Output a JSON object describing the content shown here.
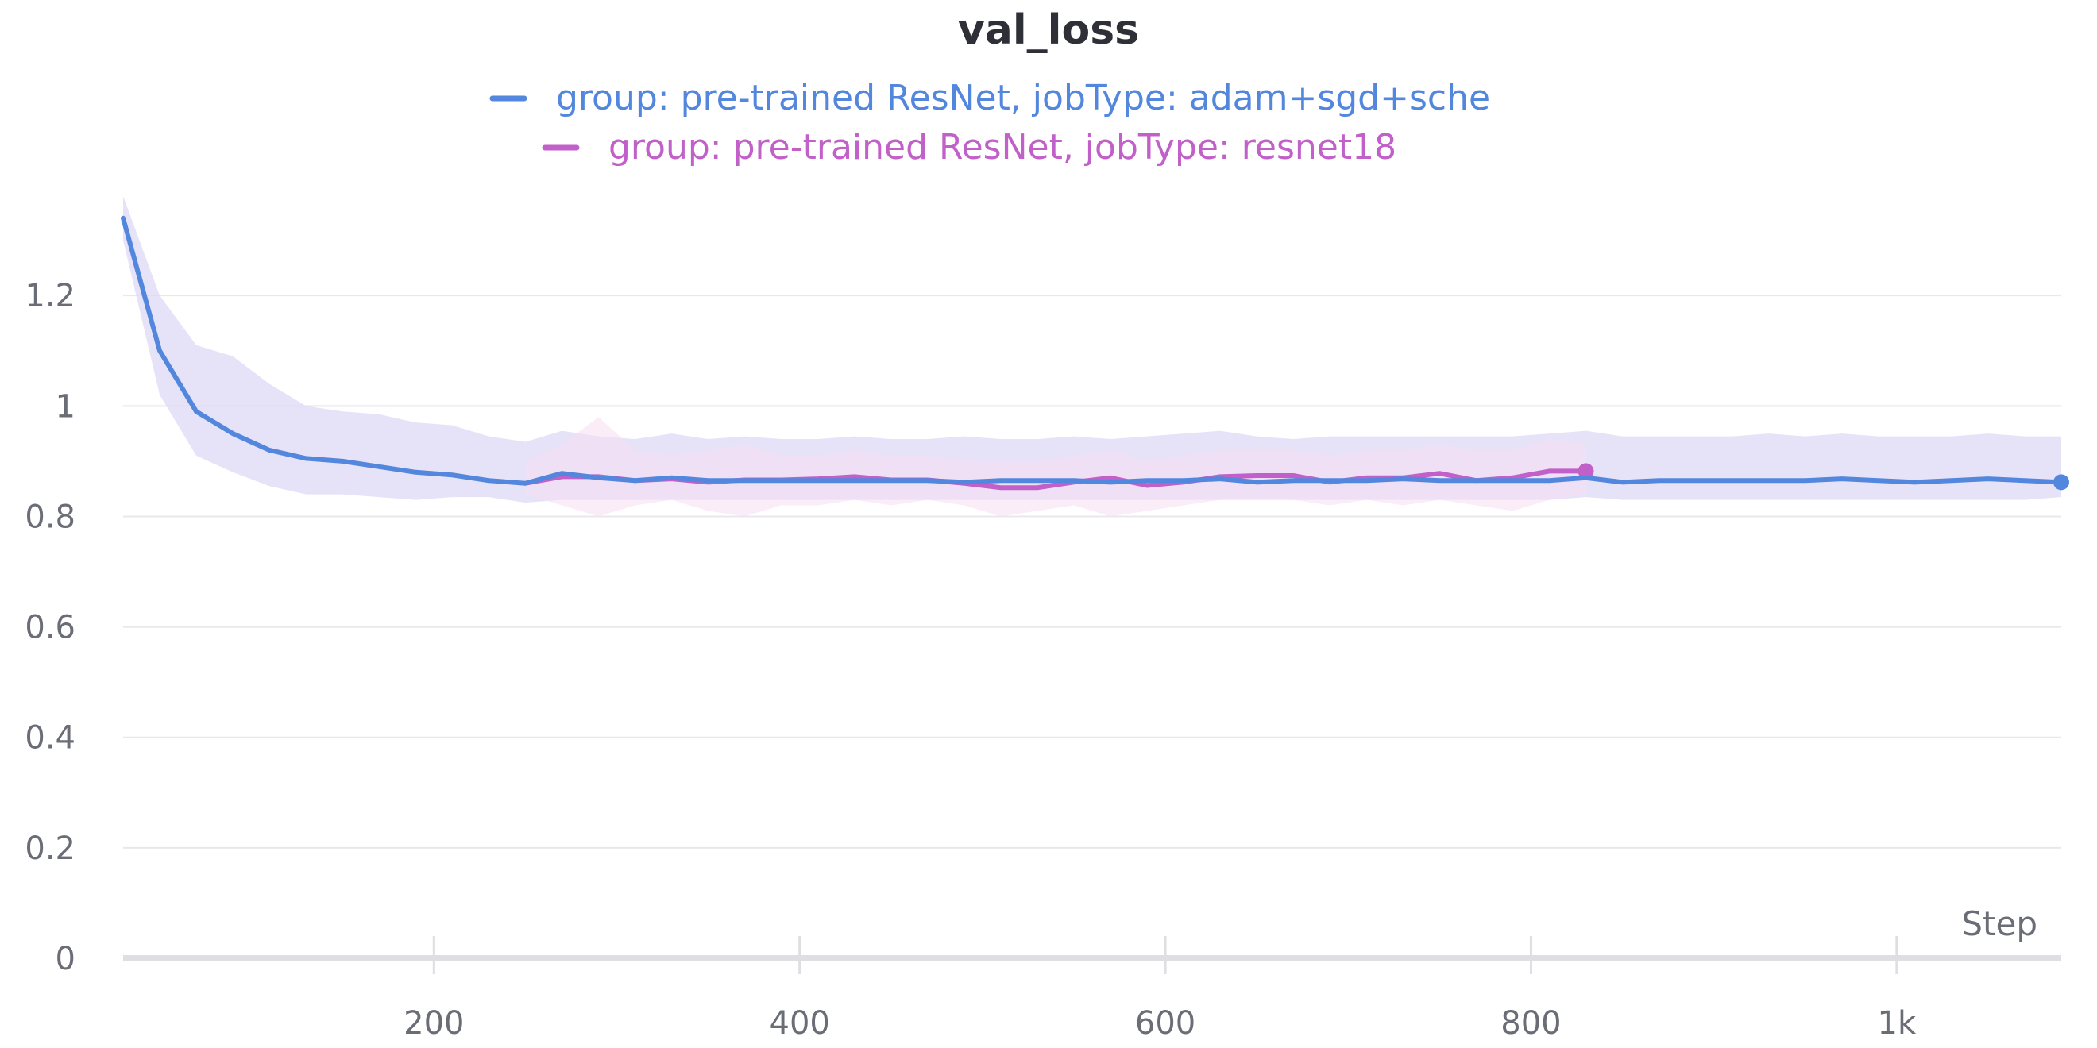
{
  "chart_data": {
    "type": "line",
    "title": "val_loss",
    "xlabel": "Step",
    "ylabel": "",
    "xlim": [
      30,
      1090
    ],
    "ylim": [
      0,
      1.39
    ],
    "x_ticks": [
      200,
      400,
      600,
      800,
      1000
    ],
    "x_tick_labels": [
      "200",
      "400",
      "600",
      "800",
      "1k"
    ],
    "y_ticks": [
      0,
      0.2,
      0.4,
      0.6,
      0.8,
      1.0,
      1.2
    ],
    "y_tick_labels": [
      "0",
      "0.2",
      "0.4",
      "0.6",
      "0.8",
      "1",
      "1.2"
    ],
    "grid": true,
    "legend_position": "top-center",
    "series": [
      {
        "name": "group: pre-trained ResNet, jobType: adam+sgd+sche",
        "color": "#5387dd",
        "band_color": "#ddd9f5",
        "x": [
          30,
          50,
          70,
          90,
          110,
          130,
          150,
          170,
          190,
          210,
          230,
          250,
          270,
          290,
          310,
          330,
          350,
          370,
          390,
          410,
          430,
          450,
          470,
          490,
          510,
          530,
          550,
          570,
          590,
          610,
          630,
          650,
          670,
          690,
          710,
          730,
          750,
          770,
          790,
          810,
          830,
          850,
          870,
          890,
          910,
          930,
          950,
          970,
          990,
          1010,
          1030,
          1050,
          1070,
          1090
        ],
        "y": [
          1.34,
          1.1,
          0.99,
          0.95,
          0.92,
          0.905,
          0.9,
          0.89,
          0.88,
          0.875,
          0.865,
          0.86,
          0.878,
          0.87,
          0.865,
          0.87,
          0.865,
          0.865,
          0.865,
          0.865,
          0.865,
          0.865,
          0.865,
          0.862,
          0.865,
          0.865,
          0.865,
          0.862,
          0.865,
          0.865,
          0.868,
          0.862,
          0.865,
          0.865,
          0.865,
          0.868,
          0.865,
          0.865,
          0.865,
          0.865,
          0.87,
          0.862,
          0.865,
          0.865,
          0.865,
          0.865,
          0.865,
          0.868,
          0.865,
          0.862,
          0.865,
          0.868,
          0.865,
          0.862
        ],
        "lower": [
          1.3,
          1.02,
          0.91,
          0.88,
          0.855,
          0.84,
          0.84,
          0.835,
          0.83,
          0.835,
          0.835,
          0.825,
          0.83,
          0.83,
          0.83,
          0.83,
          0.83,
          0.83,
          0.83,
          0.83,
          0.83,
          0.83,
          0.83,
          0.83,
          0.83,
          0.83,
          0.83,
          0.83,
          0.83,
          0.83,
          0.83,
          0.83,
          0.83,
          0.83,
          0.83,
          0.83,
          0.83,
          0.83,
          0.83,
          0.83,
          0.835,
          0.83,
          0.83,
          0.83,
          0.83,
          0.83,
          0.83,
          0.83,
          0.83,
          0.83,
          0.83,
          0.83,
          0.83,
          0.835
        ],
        "upper": [
          1.38,
          1.2,
          1.11,
          1.09,
          1.04,
          1.0,
          0.99,
          0.985,
          0.97,
          0.965,
          0.945,
          0.935,
          0.955,
          0.945,
          0.94,
          0.95,
          0.94,
          0.945,
          0.94,
          0.94,
          0.945,
          0.94,
          0.94,
          0.945,
          0.94,
          0.94,
          0.945,
          0.94,
          0.945,
          0.95,
          0.955,
          0.945,
          0.94,
          0.945,
          0.945,
          0.945,
          0.945,
          0.945,
          0.945,
          0.95,
          0.955,
          0.945,
          0.945,
          0.945,
          0.945,
          0.95,
          0.945,
          0.95,
          0.945,
          0.945,
          0.945,
          0.95,
          0.945,
          0.945
        ]
      },
      {
        "name": "group: pre-trained ResNet, jobType: resnet18",
        "color": "#c260c9",
        "band_color": "#f6dff3",
        "x": [
          250,
          270,
          290,
          310,
          330,
          350,
          370,
          390,
          410,
          430,
          450,
          470,
          490,
          510,
          530,
          550,
          570,
          590,
          610,
          630,
          650,
          670,
          690,
          710,
          730,
          750,
          770,
          790,
          810,
          830
        ],
        "y": [
          0.86,
          0.872,
          0.872,
          0.865,
          0.868,
          0.862,
          0.866,
          0.866,
          0.868,
          0.872,
          0.866,
          0.866,
          0.86,
          0.852,
          0.852,
          0.862,
          0.87,
          0.856,
          0.862,
          0.872,
          0.874,
          0.874,
          0.862,
          0.87,
          0.87,
          0.878,
          0.865,
          0.87,
          0.882,
          0.882
        ],
        "lower": [
          0.84,
          0.82,
          0.8,
          0.82,
          0.83,
          0.81,
          0.8,
          0.82,
          0.82,
          0.83,
          0.82,
          0.83,
          0.82,
          0.8,
          0.81,
          0.82,
          0.8,
          0.81,
          0.82,
          0.83,
          0.83,
          0.83,
          0.82,
          0.83,
          0.82,
          0.83,
          0.82,
          0.81,
          0.83,
          0.84
        ],
        "upper": [
          0.9,
          0.93,
          0.98,
          0.92,
          0.91,
          0.92,
          0.93,
          0.91,
          0.91,
          0.92,
          0.91,
          0.91,
          0.9,
          0.9,
          0.9,
          0.91,
          0.92,
          0.9,
          0.91,
          0.92,
          0.92,
          0.92,
          0.91,
          0.92,
          0.92,
          0.93,
          0.92,
          0.92,
          0.94,
          0.93
        ]
      }
    ]
  }
}
